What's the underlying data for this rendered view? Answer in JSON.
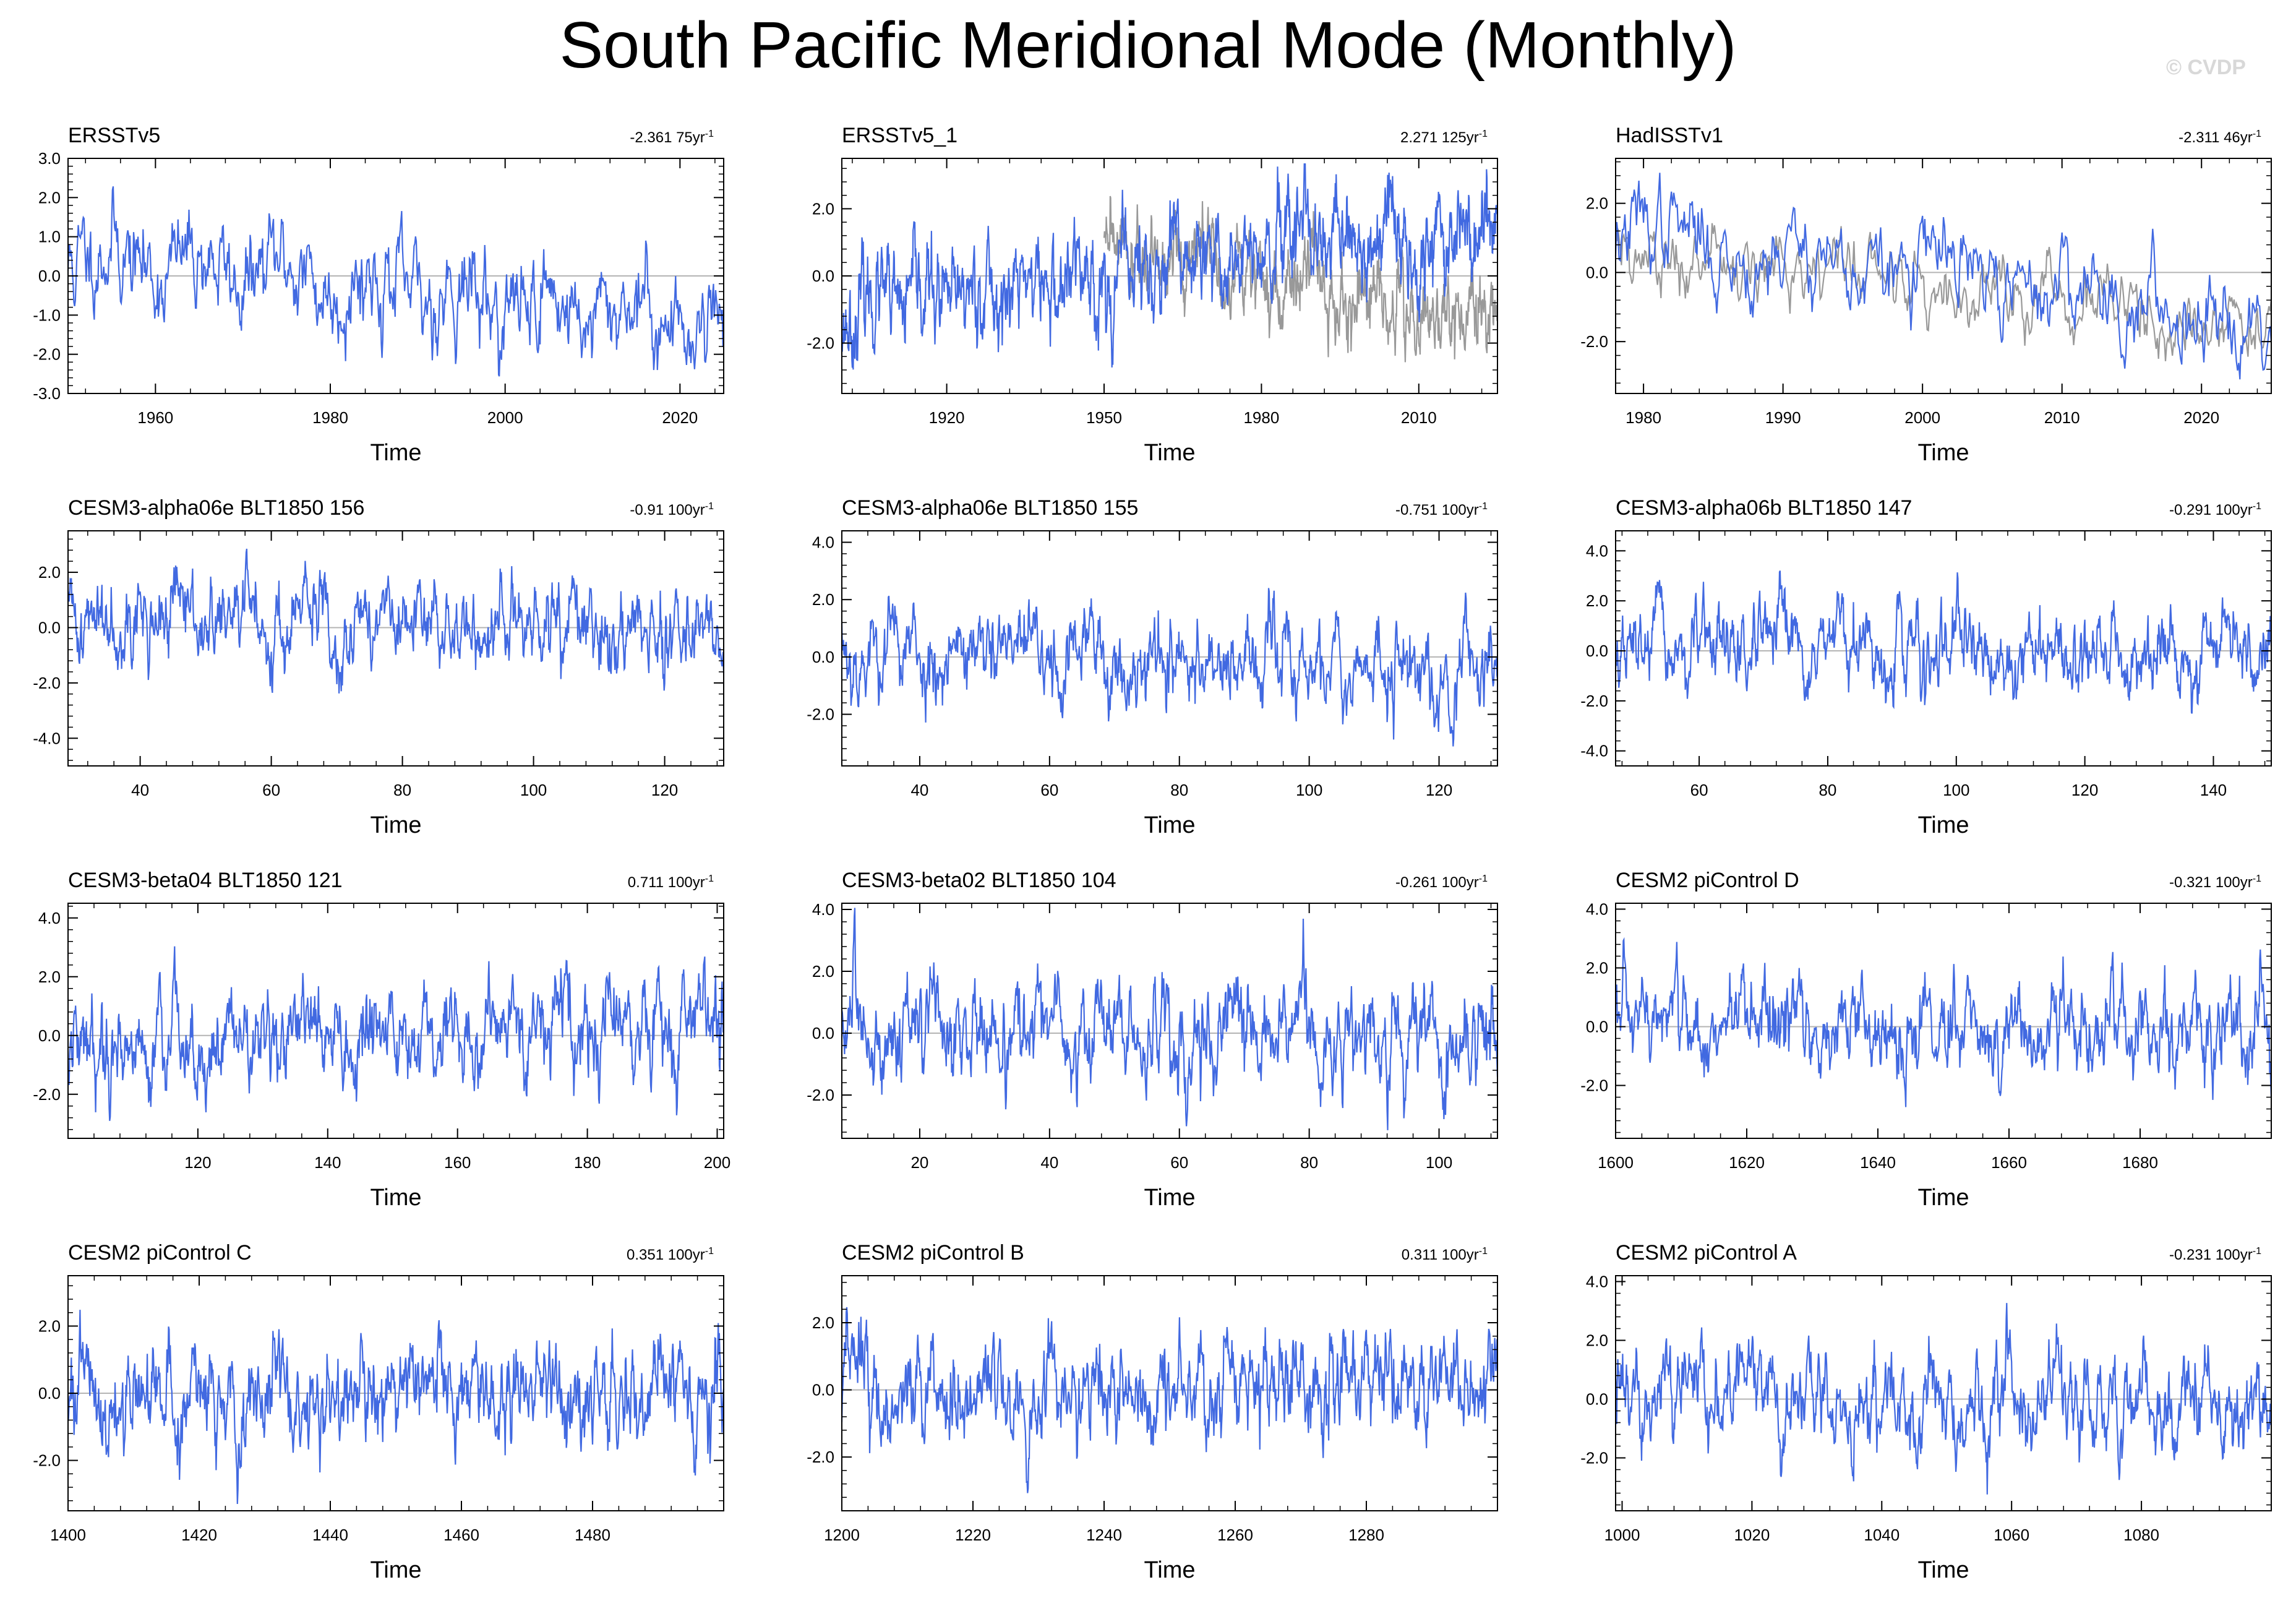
{
  "page": {
    "title": "South Pacific Meridional Mode (Monthly)",
    "watermark": "© CVDP"
  },
  "colors": {
    "model_line": "#4169e1",
    "obs_line": "#999999",
    "zero_line": "#b4b4b4",
    "frame": "#000000"
  },
  "chart_data": [
    {
      "type": "line",
      "name": "ERSSTv5",
      "trend": "-2.361 75yr",
      "trend_unit_exp": "-1",
      "xlabel": "Time",
      "xlim": [
        1950,
        2025
      ],
      "ylim": [
        -3,
        3
      ],
      "xticks": [
        1960,
        1980,
        2000,
        2020
      ],
      "yticks": [
        -3,
        -2,
        -1,
        0,
        1,
        2,
        3
      ],
      "ytick_labels": [
        "-3.0",
        "-2.0",
        "-1.0",
        "0.0",
        "1.0",
        "2.0",
        "3.0"
      ],
      "start": 1950,
      "end": 2025,
      "mean_start": 0.6,
      "mean_end": -1.2,
      "amp": 0.7,
      "extreme": 2.8,
      "seed": 11,
      "overlay": null
    },
    {
      "type": "line",
      "name": "ERSSTv5_1",
      "trend": "2.271 125yr",
      "trend_unit_exp": "-1",
      "xlabel": "Time",
      "xlim": [
        1900,
        2025
      ],
      "ylim": [
        -3.5,
        3.5
      ],
      "xticks": [
        1920,
        1950,
        1980,
        2010
      ],
      "yticks": [
        -2,
        0,
        2
      ],
      "ytick_labels": [
        "-2.0",
        "0.0",
        "2.0"
      ],
      "start": 1900,
      "end": 2025,
      "mean_start": -1.0,
      "mean_end": 1.4,
      "amp": 0.8,
      "extreme": 2.8,
      "seed": 23,
      "overlay": {
        "start": 1950,
        "end": 2025,
        "mean_start": 0.9,
        "mean_end": -1.4,
        "amp": 0.7
      }
    },
    {
      "type": "line",
      "name": "HadISSTv1",
      "trend": "-2.311 46yr",
      "trend_unit_exp": "-1",
      "xlabel": "Time",
      "xlim": [
        1978,
        2025
      ],
      "ylim": [
        -3.5,
        3.3
      ],
      "xticks": [
        1980,
        1990,
        2000,
        2010,
        2020
      ],
      "yticks": [
        -2,
        0,
        2
      ],
      "ytick_labels": [
        "-2.0",
        "0.0",
        "2.0"
      ],
      "start": 1978,
      "end": 2025,
      "mean_start": 1.2,
      "mean_end": -1.3,
      "amp": 0.75,
      "extreme": 2.5,
      "seed": 37,
      "overlay": {
        "start": 1978,
        "end": 2025,
        "mean_start": 0.9,
        "mean_end": -1.6,
        "amp": 0.6
      }
    },
    {
      "type": "line",
      "name": "CESM3-alpha06e BLT1850 156",
      "trend": "-0.91 100yr",
      "trend_unit_exp": "-1",
      "xlabel": "Time",
      "xlim": [
        29,
        129
      ],
      "ylim": [
        -5,
        3.5
      ],
      "xticks": [
        40,
        60,
        80,
        100,
        120
      ],
      "yticks": [
        -4,
        -2,
        0,
        2
      ],
      "ytick_labels": [
        "-4.0",
        "-2.0",
        "0.0",
        "2.0"
      ],
      "start": 29,
      "end": 129,
      "mean_start": 0.5,
      "mean_end": -0.3,
      "amp": 0.85,
      "extreme": 4.4,
      "seed": 41,
      "overlay": null
    },
    {
      "type": "line",
      "name": "CESM3-alpha06e BLT1850 155",
      "trend": "-0.751 100yr",
      "trend_unit_exp": "-1",
      "xlabel": "Time",
      "xlim": [
        28,
        129
      ],
      "ylim": [
        -3.8,
        4.4
      ],
      "xticks": [
        40,
        60,
        80,
        100,
        120
      ],
      "yticks": [
        -2,
        0,
        2,
        4
      ],
      "ytick_labels": [
        "-2.0",
        "0.0",
        "2.0",
        "4.0"
      ],
      "start": 28,
      "end": 129,
      "mean_start": 0.3,
      "mean_end": -0.5,
      "amp": 0.85,
      "extreme": 4.1,
      "seed": 53,
      "overlay": null
    },
    {
      "type": "line",
      "name": "CESM3-alpha06b BLT1850 147",
      "trend": "-0.291 100yr",
      "trend_unit_exp": "-1",
      "xlabel": "Time",
      "xlim": [
        47,
        149
      ],
      "ylim": [
        -4.6,
        4.8
      ],
      "xticks": [
        60,
        80,
        100,
        120,
        140
      ],
      "yticks": [
        -4,
        -2,
        0,
        2,
        4
      ],
      "ytick_labels": [
        "-4.0",
        "-2.0",
        "0.0",
        "2.0",
        "4.0"
      ],
      "start": 47,
      "end": 149,
      "mean_start": 0.1,
      "mean_end": -0.2,
      "amp": 0.85,
      "extreme": 4.2,
      "seed": 67,
      "overlay": null
    },
    {
      "type": "line",
      "name": "CESM3-beta04 BLT1850 121",
      "trend": "0.711 100yr",
      "trend_unit_exp": "-1",
      "xlabel": "Time",
      "xlim": [
        100,
        201
      ],
      "ylim": [
        -3.5,
        4.5
      ],
      "xticks": [
        120,
        140,
        160,
        180,
        200
      ],
      "yticks": [
        -2,
        0,
        2,
        4
      ],
      "ytick_labels": [
        "-2.0",
        "0.0",
        "2.0",
        "4.0"
      ],
      "start": 100,
      "end": 201,
      "mean_start": -0.3,
      "mean_end": 0.4,
      "amp": 0.9,
      "extreme": 3.8,
      "seed": 79,
      "overlay": null
    },
    {
      "type": "line",
      "name": "CESM3-beta02 BLT1850 104",
      "trend": "-0.261 100yr",
      "trend_unit_exp": "-1",
      "xlabel": "Time",
      "xlim": [
        8,
        109
      ],
      "ylim": [
        -3.4,
        4.2
      ],
      "xticks": [
        20,
        40,
        60,
        80,
        100
      ],
      "yticks": [
        -2,
        0,
        2,
        4
      ],
      "ytick_labels": [
        "-2.0",
        "0.0",
        "2.0",
        "4.0"
      ],
      "start": 8,
      "end": 109,
      "mean_start": 0.1,
      "mean_end": -0.1,
      "amp": 0.9,
      "extreme": 3.7,
      "seed": 83,
      "overlay": null
    },
    {
      "type": "line",
      "name": "CESM2 piControl D",
      "trend": "-0.321 100yr",
      "trend_unit_exp": "-1",
      "xlabel": "Time",
      "xlim": [
        1600,
        1700
      ],
      "ylim": [
        -3.8,
        4.2
      ],
      "xticks": [
        1600,
        1620,
        1640,
        1660,
        1680
      ],
      "yticks": [
        -2,
        0,
        2,
        4
      ],
      "ytick_labels": [
        "-2.0",
        "0.0",
        "2.0",
        "4.0"
      ],
      "start": 1600,
      "end": 1700,
      "mean_start": 0.1,
      "mean_end": -0.2,
      "amp": 0.85,
      "extreme": 3.6,
      "seed": 97,
      "overlay": null
    },
    {
      "type": "line",
      "name": "CESM2 piControl C",
      "trend": "0.351 100yr",
      "trend_unit_exp": "-1",
      "xlabel": "Time",
      "xlim": [
        1400,
        1500
      ],
      "ylim": [
        -3.5,
        3.5
      ],
      "xticks": [
        1400,
        1420,
        1440,
        1460,
        1480
      ],
      "yticks": [
        -2,
        0,
        2
      ],
      "ytick_labels": [
        "-2.0",
        "0.0",
        "2.0"
      ],
      "start": 1400,
      "end": 1500,
      "mean_start": -0.2,
      "mean_end": 0.2,
      "amp": 0.85,
      "extreme": 3.2,
      "seed": 101,
      "overlay": null
    },
    {
      "type": "line",
      "name": "CESM2 piControl B",
      "trend": "0.311 100yr",
      "trend_unit_exp": "-1",
      "xlabel": "Time",
      "xlim": [
        1200,
        1300
      ],
      "ylim": [
        -3.6,
        3.4
      ],
      "xticks": [
        1200,
        1220,
        1240,
        1260,
        1280
      ],
      "yticks": [
        -2,
        0,
        2
      ],
      "ytick_labels": [
        "-2.0",
        "0.0",
        "2.0"
      ],
      "start": 1200,
      "end": 1300,
      "mean_start": -0.1,
      "mean_end": 0.2,
      "amp": 0.85,
      "extreme": 3.3,
      "seed": 113,
      "overlay": null
    },
    {
      "type": "line",
      "name": "CESM2 piControl A",
      "trend": "-0.231 100yr",
      "trend_unit_exp": "-1",
      "xlabel": "Time",
      "xlim": [
        999,
        1100
      ],
      "ylim": [
        -3.8,
        4.2
      ],
      "xticks": [
        1000,
        1020,
        1040,
        1060,
        1080
      ],
      "yticks": [
        -2,
        0,
        2,
        4
      ],
      "ytick_labels": [
        "-2.0",
        "0.0",
        "2.0",
        "4.0"
      ],
      "start": 999,
      "end": 1100,
      "mean_start": 0.1,
      "mean_end": -0.1,
      "amp": 0.85,
      "extreme": 3.6,
      "seed": 127,
      "overlay": null
    }
  ]
}
